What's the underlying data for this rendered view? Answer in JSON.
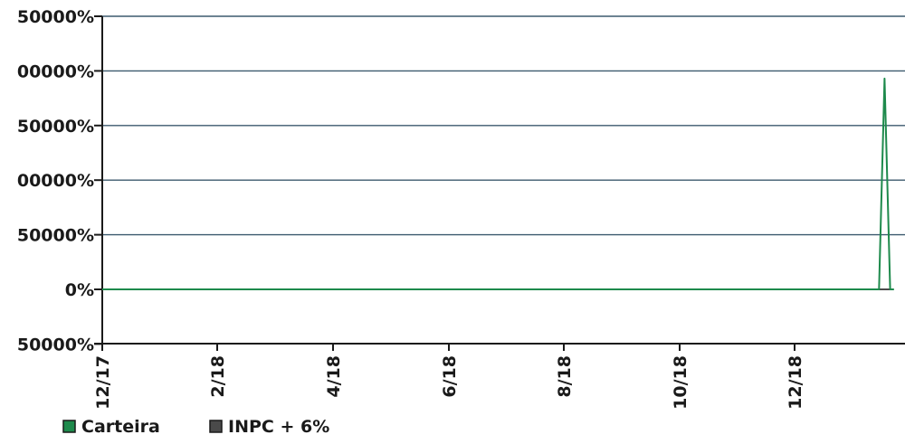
{
  "chart_data": {
    "type": "line",
    "title": "",
    "xlabel": "",
    "ylabel": "",
    "x_ticks": [
      "12/17",
      "2/18",
      "4/18",
      "6/18",
      "8/18",
      "10/18",
      "12/18"
    ],
    "y_ticks": [
      "50000%",
      "00000%",
      "50000%",
      "00000%",
      "50000%",
      "0%",
      "50000%"
    ],
    "grid": true,
    "legend_position": "bottom-left",
    "series": [
      {
        "name": "Carteira",
        "color": "#1e8a4c",
        "points": [
          {
            "x": "2017-12-01",
            "y": 0
          },
          {
            "x": "2019-01-24",
            "y": 0
          },
          {
            "x": "2019-01-27",
            "y": 1930000
          },
          {
            "x": "2019-01-30",
            "y": 0
          },
          {
            "x": "2019-02-01",
            "y": 0
          }
        ]
      },
      {
        "name": "INPC + 6%",
        "color": "#4a4a4a",
        "points": [
          {
            "x": "2017-12-01",
            "y": 0
          },
          {
            "x": "2019-02-01",
            "y": 0
          }
        ]
      }
    ]
  }
}
